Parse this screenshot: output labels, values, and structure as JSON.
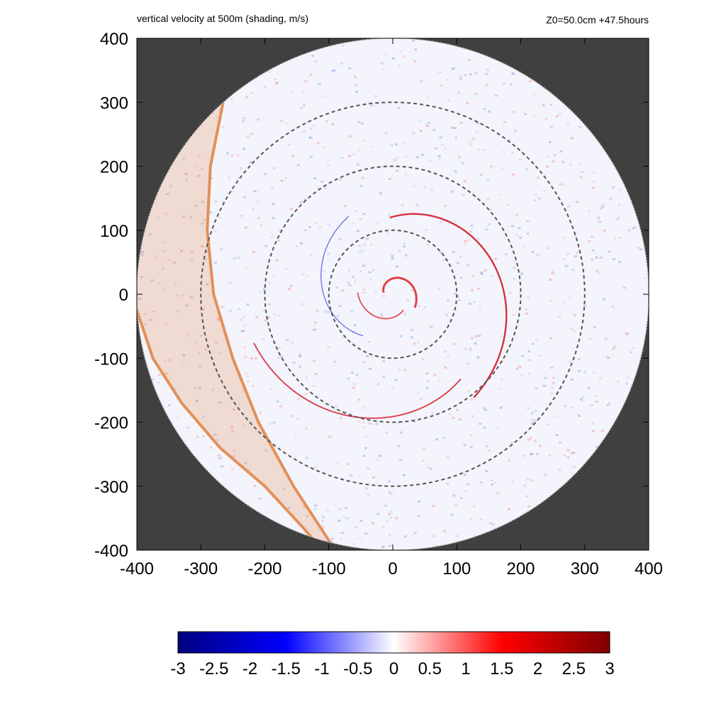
{
  "header": {
    "left_title": "vertical velocity at 500m (shading, m/s)",
    "right_info": "Z0=50.0cm  +47.5hours"
  },
  "chart_data": {
    "type": "heatmap",
    "title": "vertical velocity at 500m (shading, m/s)",
    "annotation": "Z0=50.0cm  +47.5hours",
    "xlabel": "",
    "ylabel": "",
    "xlim": [
      -400,
      400
    ],
    "ylim": [
      -400,
      400
    ],
    "x_ticks": [
      -400,
      -300,
      -200,
      -100,
      0,
      100,
      200,
      300,
      400
    ],
    "y_ticks": [
      -400,
      -300,
      -200,
      -100,
      0,
      100,
      200,
      300,
      400
    ],
    "domain_radius": 400,
    "range_rings": [
      100,
      200,
      300
    ],
    "colorbar": {
      "min": -3,
      "max": 3,
      "ticks": [
        "-3",
        "-2.5",
        "-2",
        "-1.5",
        "-1",
        "-0.5",
        "0",
        "0.5",
        "1",
        "1.5",
        "2",
        "2.5",
        "3"
      ],
      "colors": [
        "#00007f",
        "#0000ff",
        "#ffffff",
        "#ff0000",
        "#7f0000"
      ]
    },
    "shaded_band": {
      "inner_edge": [
        [
          -265,
          300
        ],
        [
          -285,
          200
        ],
        [
          -290,
          100
        ],
        [
          -280,
          0
        ],
        [
          -250,
          -100
        ],
        [
          -210,
          -200
        ],
        [
          -155,
          -300
        ],
        [
          -90,
          -400
        ]
      ],
      "outer_edge": [
        [
          -400,
          -25
        ],
        [
          -375,
          -100
        ],
        [
          -330,
          -170
        ],
        [
          -270,
          -240
        ],
        [
          -200,
          -300
        ],
        [
          -140,
          -365
        ],
        [
          -110,
          -400
        ]
      ],
      "color": "#e08040"
    },
    "features": [
      {
        "name": "inner eyewall",
        "radius": 40,
        "sign": "positive"
      },
      {
        "name": "outer rainband",
        "radius": 190,
        "sign": "positive"
      }
    ],
    "background_color": "#404040"
  }
}
